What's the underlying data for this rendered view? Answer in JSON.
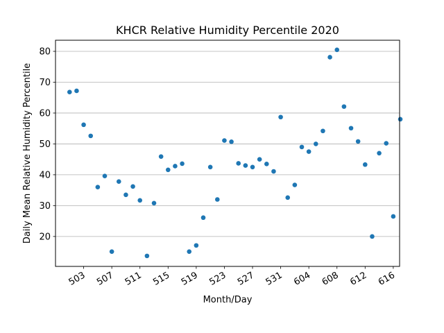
{
  "chart_data": {
    "type": "scatter",
    "title": "KHCR Relative Humidity Percentile 2020",
    "xlabel": "Month/Day",
    "ylabel": "Daily Mean Relative Humidity Percentile",
    "grid": "y-only",
    "xlim": [
      0,
      48.9
    ],
    "ylim": [
      10.3,
      83.6
    ],
    "yticks": [
      20,
      30,
      40,
      50,
      60,
      70,
      80
    ],
    "xticks": [
      {
        "x": 4,
        "label": "503"
      },
      {
        "x": 8,
        "label": "507"
      },
      {
        "x": 12,
        "label": "511"
      },
      {
        "x": 16,
        "label": "515"
      },
      {
        "x": 20,
        "label": "519"
      },
      {
        "x": 24,
        "label": "523"
      },
      {
        "x": 28,
        "label": "527"
      },
      {
        "x": 32,
        "label": "531"
      },
      {
        "x": 36,
        "label": "604"
      },
      {
        "x": 40,
        "label": "608"
      },
      {
        "x": 44,
        "label": "612"
      },
      {
        "x": 48,
        "label": "616"
      }
    ],
    "marker_color": "#1f77b4",
    "series": [
      {
        "x": [
          2,
          3,
          4,
          5,
          6,
          7,
          8,
          9,
          10,
          11,
          12,
          13,
          14,
          15,
          16,
          17,
          18,
          19,
          20,
          21,
          22,
          23,
          24,
          25,
          26,
          27,
          28,
          29,
          30,
          31,
          32,
          33,
          34,
          35,
          36,
          37,
          38,
          39,
          40,
          41,
          42,
          43,
          44,
          45,
          46,
          47,
          48,
          49
        ],
        "y": [
          66.8,
          67.2,
          56.2,
          52.6,
          36.0,
          39.6,
          15.1,
          37.8,
          33.5,
          36.2,
          31.7,
          13.7,
          30.8,
          45.9,
          41.6,
          42.8,
          43.6,
          15.1,
          17.1,
          26.1,
          42.5,
          32.0,
          51.1,
          50.7,
          43.7,
          43.0,
          42.5,
          45.0,
          43.5,
          41.1,
          58.7,
          32.6,
          36.7,
          49.0,
          47.5,
          50.0,
          54.2,
          78.1,
          80.5,
          62.1,
          55.1,
          50.8,
          43.3,
          20.0,
          47.0,
          50.2,
          26.5,
          58.0
        ]
      }
    ]
  }
}
